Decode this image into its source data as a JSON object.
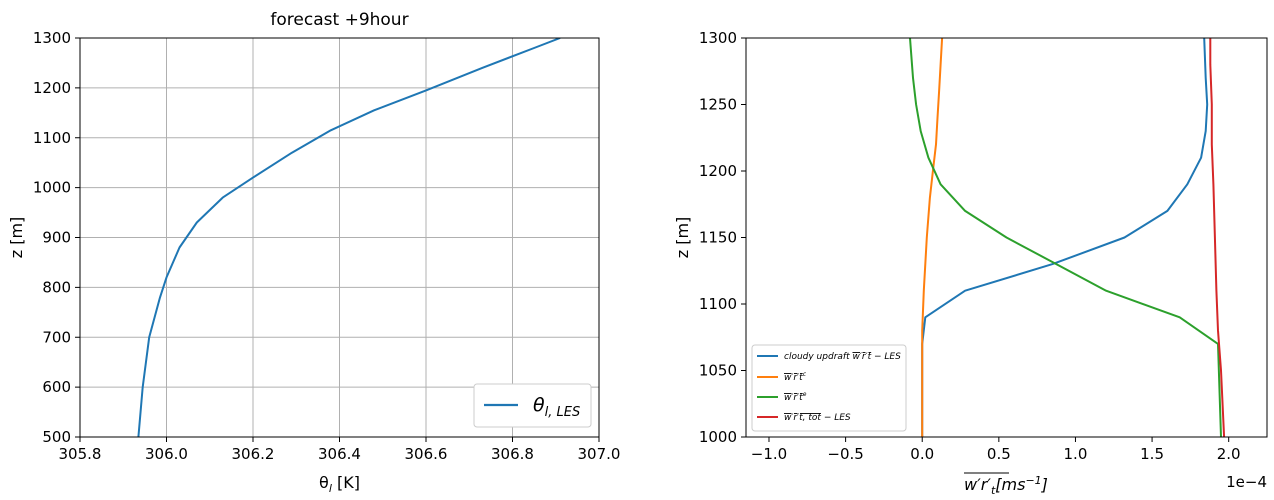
{
  "chart_data": [
    {
      "type": "line",
      "title": "forecast +9hour",
      "xlabel": "θ_l [K]",
      "ylabel": "z [m]",
      "xlim": [
        305.8,
        307.0
      ],
      "ylim": [
        500,
        1300
      ],
      "xticks": [
        "305.8",
        "306.0",
        "306.2",
        "306.4",
        "306.6",
        "306.8",
        "307.0"
      ],
      "yticks": [
        "500",
        "600",
        "700",
        "800",
        "900",
        "1000",
        "1100",
        "1200",
        "1300"
      ],
      "grid": true,
      "legend_position": "lower-right",
      "series": [
        {
          "name": "θ_l,LES",
          "color": "#1f77b4",
          "x": [
            305.935,
            305.945,
            305.96,
            305.985,
            306.0,
            306.03,
            306.07,
            306.13,
            306.2,
            306.29,
            306.38,
            306.48,
            306.6,
            306.73,
            306.85,
            306.91
          ],
          "y": [
            500,
            600,
            700,
            780,
            820,
            880,
            930,
            980,
            1020,
            1070,
            1115,
            1155,
            1195,
            1240,
            1280,
            1300
          ]
        }
      ]
    },
    {
      "type": "line",
      "xlabel": "w'r'_t [ms^-1]",
      "ylabel": "z [m]",
      "xlim": [
        -1.15,
        2.25
      ],
      "ylim": [
        1000,
        1300
      ],
      "x_scale_label": "1e−4",
      "xticks": [
        "−1.0",
        "−0.5",
        "0.0",
        "0.5",
        "1.0",
        "1.5",
        "2.0"
      ],
      "yticks": [
        "1000",
        "1050",
        "1100",
        "1150",
        "1200",
        "1250",
        "1300"
      ],
      "grid": false,
      "legend_position": "lower-left",
      "series": [
        {
          "name": "cloudy updraft w'r'_t − LES",
          "color": "#1f77b4",
          "x": [
            0.0,
            0.0,
            0.02,
            0.28,
            0.85,
            1.32,
            1.6,
            1.73,
            1.82,
            1.85,
            1.86,
            1.85,
            1.84
          ],
          "y": [
            1000,
            1070,
            1090,
            1110,
            1130,
            1150,
            1170,
            1190,
            1210,
            1230,
            1250,
            1270,
            1300
          ]
        },
        {
          "name": "w'r'_t^c",
          "color": "#ff7f0e",
          "x": [
            0.0,
            0.0,
            0.01,
            0.03,
            0.05,
            0.07,
            0.09,
            0.1,
            0.11,
            0.12,
            0.13
          ],
          "y": [
            1000,
            1080,
            1110,
            1150,
            1180,
            1200,
            1220,
            1240,
            1260,
            1280,
            1300
          ]
        },
        {
          "name": "w'r'_t^e",
          "color": "#2ca02c",
          "x": [
            1.95,
            1.93,
            1.68,
            1.2,
            0.55,
            0.28,
            0.12,
            0.04,
            -0.01,
            -0.04,
            -0.06,
            -0.07,
            -0.08
          ],
          "y": [
            1000,
            1070,
            1090,
            1110,
            1150,
            1170,
            1190,
            1210,
            1230,
            1250,
            1270,
            1285,
            1300
          ]
        },
        {
          "name": "w'r'_t,tot − LES",
          "color": "#d62728",
          "x": [
            1.97,
            1.95,
            1.93,
            1.92,
            1.91,
            1.9,
            1.89,
            1.89,
            1.88,
            1.88
          ],
          "y": [
            1000,
            1050,
            1080,
            1110,
            1150,
            1190,
            1220,
            1250,
            1280,
            1300
          ]
        }
      ]
    }
  ]
}
